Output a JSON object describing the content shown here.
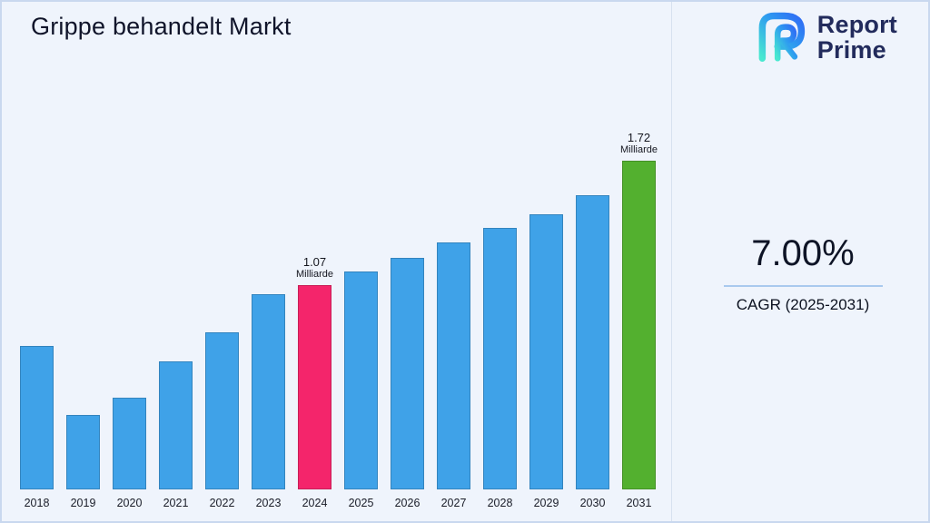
{
  "header": {
    "title": "Grippe behandelt Markt"
  },
  "logo": {
    "line1": "Report",
    "line2": "Prime"
  },
  "cagr": {
    "value": "7.00%",
    "label": "CAGR (2025-2031)"
  },
  "colors": {
    "background": "#eff4fc",
    "bar_default": "#3fa2e8",
    "bar_2024": "#f4256b",
    "bar_2031": "#53b02f",
    "underline": "#a9c9ee",
    "logo_navy": "#222b5c"
  },
  "chart_data": {
    "type": "bar",
    "title": "Grippe behandelt Markt",
    "xlabel": "",
    "ylabel": "",
    "unit": "Milliarde",
    "categories": [
      "2018",
      "2019",
      "2020",
      "2021",
      "2022",
      "2023",
      "2024",
      "2025",
      "2026",
      "2027",
      "2028",
      "2029",
      "2030",
      "2031"
    ],
    "values": [
      0.75,
      0.39,
      0.48,
      0.67,
      0.82,
      1.02,
      1.07,
      1.14,
      1.21,
      1.29,
      1.37,
      1.44,
      1.54,
      1.72
    ],
    "ylim": [
      0,
      1.9
    ],
    "grid": false,
    "legend": false,
    "default_color": "#3fa2e8",
    "highlighted": [
      {
        "category": "2024",
        "color": "#f4256b",
        "label": "1.07",
        "sublabel": "Milliarde"
      },
      {
        "category": "2031",
        "color": "#53b02f",
        "label": "1.72",
        "sublabel": "Milliarde"
      }
    ]
  }
}
